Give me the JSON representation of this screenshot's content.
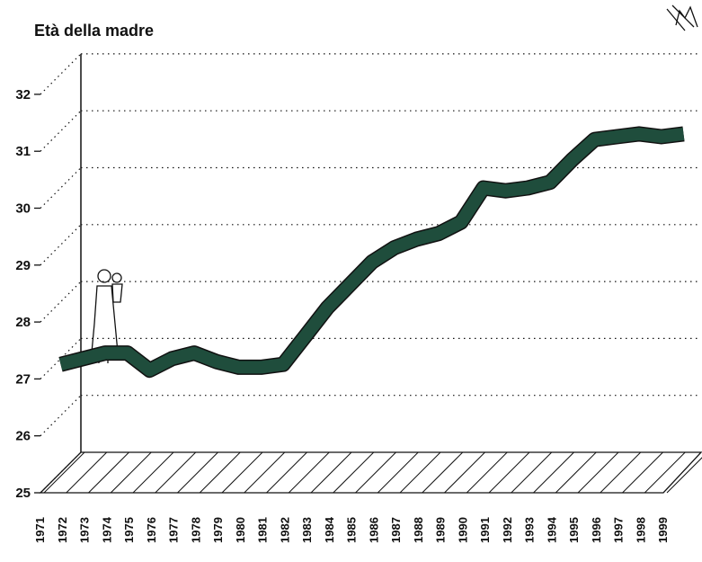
{
  "chart_data": {
    "type": "ribbon-line",
    "title": "Età della madre",
    "categories": [
      "1971",
      "1972",
      "1973",
      "1974",
      "1975",
      "1976",
      "1977",
      "1978",
      "1979",
      "1980",
      "1981",
      "1982",
      "1983",
      "1984",
      "1985",
      "1986",
      "1987",
      "1988",
      "1989",
      "1990",
      "1991",
      "1992",
      "1993",
      "1994",
      "1995",
      "1996",
      "1997",
      "1998",
      "1999"
    ],
    "values": [
      26.9,
      27.0,
      27.1,
      27.1,
      26.8,
      27.0,
      27.1,
      26.95,
      26.85,
      26.85,
      26.9,
      27.4,
      27.9,
      28.3,
      28.7,
      28.95,
      29.1,
      29.2,
      29.4,
      30.0,
      29.95,
      30.0,
      30.1,
      30.5,
      30.85,
      30.9,
      30.95,
      30.9,
      30.95
    ],
    "color": "#1f4d3c",
    "ylim": [
      25,
      32
    ],
    "yticks": [
      25,
      26,
      27,
      28,
      29,
      30,
      31,
      32
    ],
    "grid": true
  }
}
